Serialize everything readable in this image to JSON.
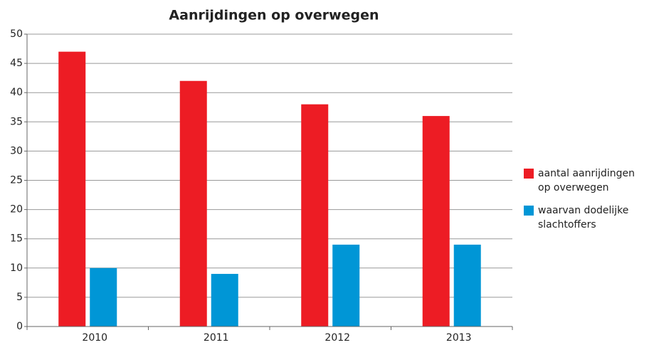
{
  "chart_data": {
    "type": "bar",
    "title": "Aanrijdingen op overwegen",
    "categories": [
      "2010",
      "2011",
      "2012",
      "2013"
    ],
    "series": [
      {
        "name": "aantal aanrijdingen op overwegen",
        "color": "#ed1c24",
        "values": [
          47,
          42,
          38,
          36
        ]
      },
      {
        "name": "waarvan dodelijke slachtoffers",
        "color": "#0096d6",
        "values": [
          10,
          9,
          14,
          14
        ]
      }
    ],
    "ylim": [
      0,
      50
    ],
    "yticks": [
      0,
      5,
      10,
      15,
      20,
      25,
      30,
      35,
      40,
      45,
      50
    ],
    "grid": true,
    "legend": "right"
  }
}
